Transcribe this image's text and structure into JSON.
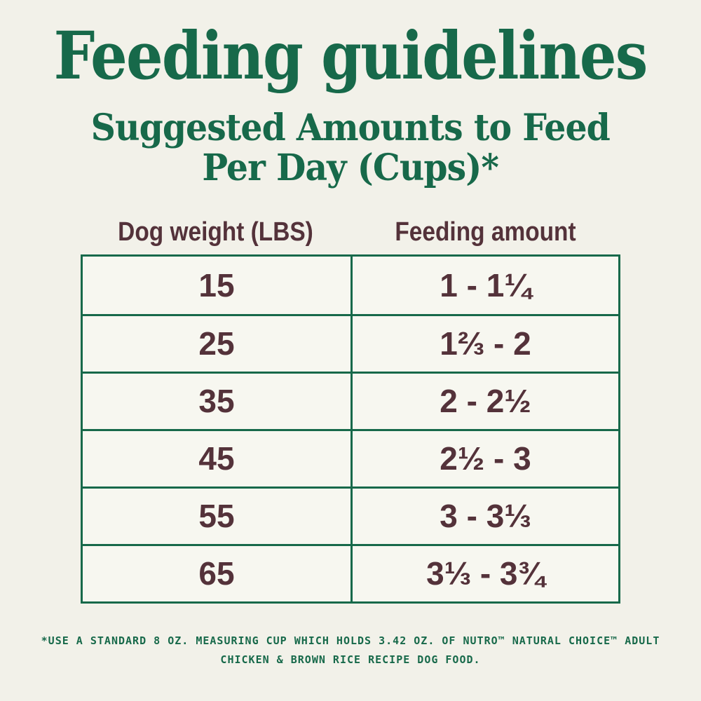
{
  "page": {
    "title": "Feeding guidelines",
    "subtitle_line1": "Suggested Amounts to Feed",
    "subtitle_line2": "Per Day (Cups)*"
  },
  "table": {
    "columns": [
      "Dog weight (LBS)",
      "Feeding amount"
    ],
    "rows": [
      {
        "weight": "15",
        "amount": "1 - 1¼"
      },
      {
        "weight": "25",
        "amount": "1⅔ - 2"
      },
      {
        "weight": "35",
        "amount": "2 - 2½"
      },
      {
        "weight": "45",
        "amount": "2½ - 3"
      },
      {
        "weight": "55",
        "amount": "3 - 3⅓"
      },
      {
        "weight": "65",
        "amount": "3⅓ - 3¾"
      }
    ]
  },
  "footnote": {
    "line1": "*USE A STANDARD 8 OZ. MEASURING CUP WHICH HOLDS 3.42 OZ. OF NUTRO™ NATURAL CHOICE™ ADULT",
    "line2": "CHICKEN & BROWN RICE RECIPE DOG FOOD."
  },
  "colors": {
    "green": "#17694a",
    "brown": "#54323a",
    "background": "#f2f1e9",
    "cell_background": "#f7f7f0"
  },
  "chart_data": {
    "type": "table",
    "title": "Feeding guidelines",
    "subtitle": "Suggested Amounts to Feed Per Day (Cups)*",
    "columns": [
      "Dog weight (LBS)",
      "Feeding amount"
    ],
    "rows": [
      [
        "15",
        "1 - 1¼"
      ],
      [
        "25",
        "1⅔ - 2"
      ],
      [
        "35",
        "2 - 2½"
      ],
      [
        "45",
        "2½ - 3"
      ],
      [
        "55",
        "3 - 3⅓"
      ],
      [
        "65",
        "3⅓ - 3¾"
      ]
    ],
    "footnote": "*USE A STANDARD 8 OZ. MEASURING CUP WHICH HOLDS 3.42 OZ. OF NUTRO™ NATURAL CHOICE™ ADULT CHICKEN & BROWN RICE RECIPE DOG FOOD."
  }
}
